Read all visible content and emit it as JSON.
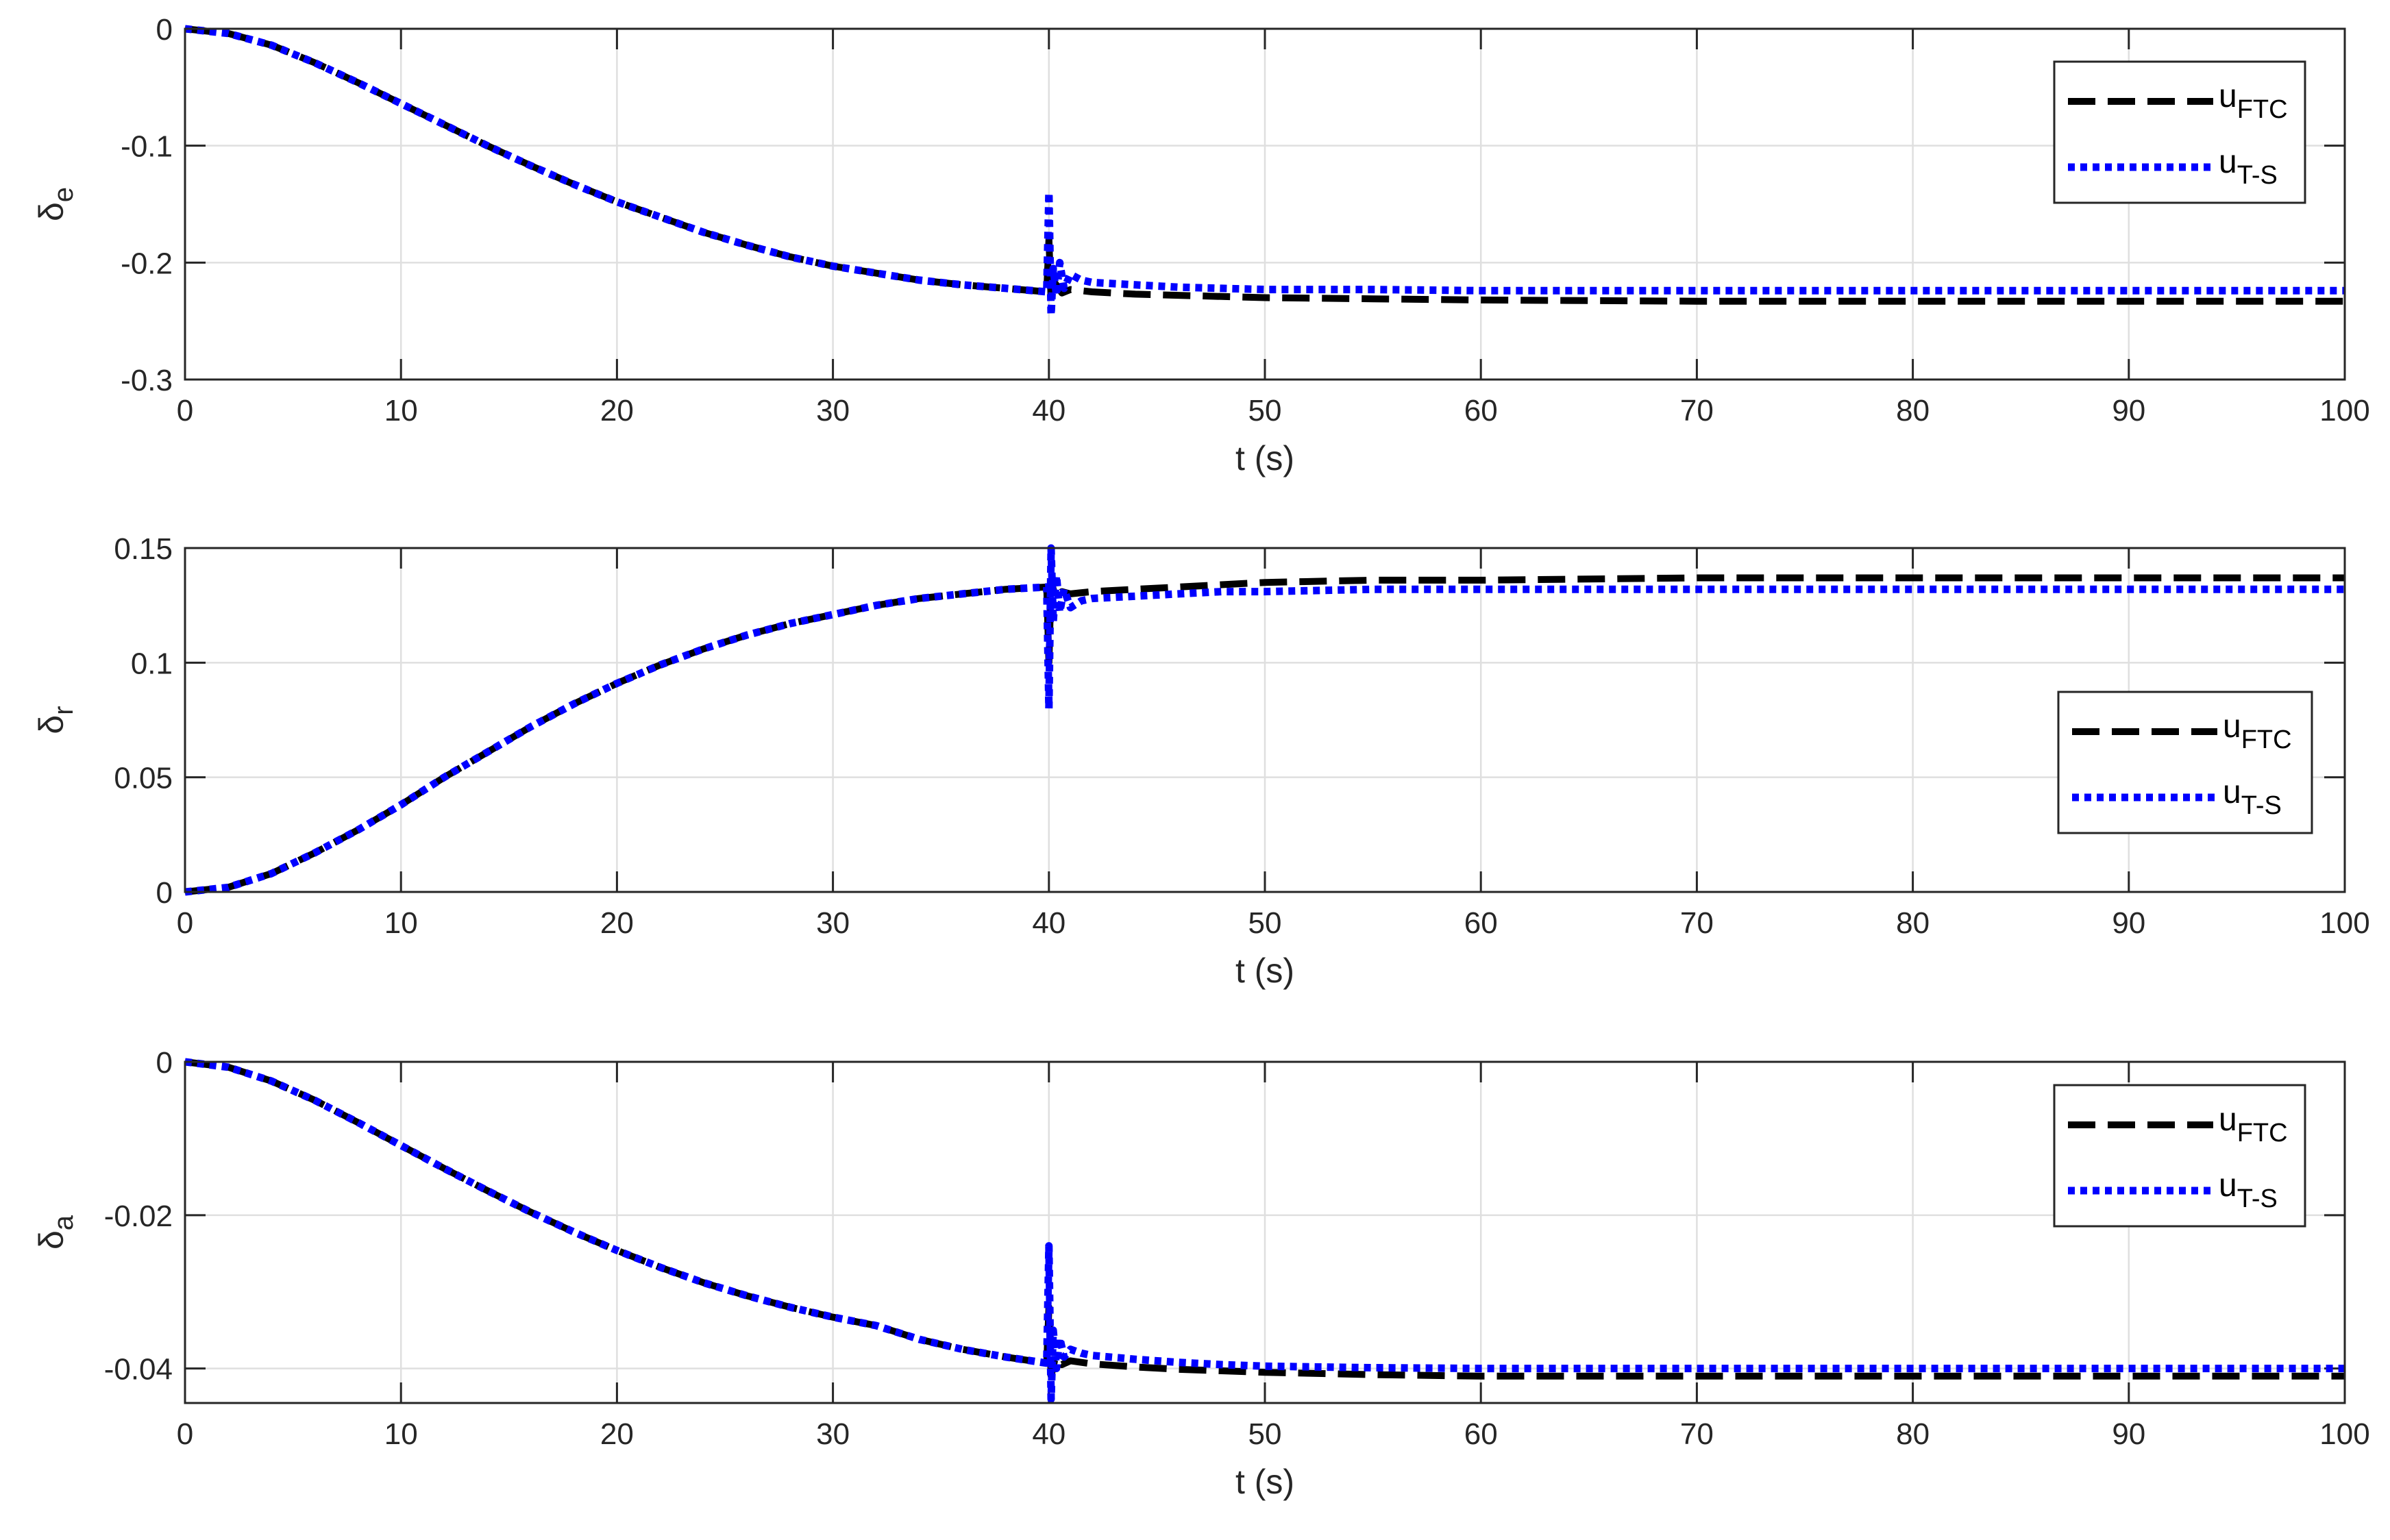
{
  "chart_data": [
    {
      "type": "line",
      "ylabel_symbol": "δ",
      "ylabel_subscript": "e",
      "xlabel": "t (s)",
      "xlim": [
        0,
        100
      ],
      "ylim": [
        -0.3,
        0
      ],
      "xticks": [
        0,
        10,
        20,
        30,
        40,
        50,
        60,
        70,
        80,
        90,
        100
      ],
      "yticks": [
        0,
        -0.1,
        -0.2,
        -0.3
      ],
      "ytick_labels": [
        "0",
        "-0.1",
        "-0.2",
        "-0.3"
      ],
      "grid": true,
      "legend_placement": "top-right",
      "series": [
        {
          "name": "u",
          "name_sub": "FTC",
          "color": "#000000",
          "style": "dash",
          "x": [
            0,
            2,
            4,
            6,
            8,
            10,
            12,
            14,
            16,
            18,
            20,
            22,
            24,
            26,
            28,
            30,
            32,
            34,
            36,
            38,
            39.9,
            40,
            40.1,
            40.3,
            40.6,
            41,
            42,
            44,
            46,
            48,
            50,
            55,
            60,
            70,
            80,
            90,
            100
          ],
          "y": [
            0,
            -0.004,
            -0.014,
            -0.029,
            -0.046,
            -0.064,
            -0.082,
            -0.1,
            -0.117,
            -0.133,
            -0.148,
            -0.161,
            -0.174,
            -0.185,
            -0.195,
            -0.203,
            -0.209,
            -0.215,
            -0.219,
            -0.222,
            -0.225,
            -0.18,
            -0.232,
            -0.218,
            -0.226,
            -0.223,
            -0.225,
            -0.227,
            -0.228,
            -0.229,
            -0.23,
            -0.231,
            -0.232,
            -0.233,
            -0.233,
            -0.233,
            -0.233
          ]
        },
        {
          "name": "u",
          "name_sub": "T-S",
          "color": "#0000FF",
          "style": "dot",
          "x": [
            0,
            2,
            4,
            6,
            8,
            10,
            12,
            14,
            16,
            18,
            20,
            22,
            24,
            26,
            28,
            30,
            32,
            34,
            36,
            38,
            39.9,
            40,
            40.1,
            40.2,
            40.35,
            40.5,
            40.7,
            41,
            41.5,
            42,
            44,
            46,
            48,
            50,
            55,
            60,
            70,
            80,
            90,
            100
          ],
          "y": [
            0,
            -0.004,
            -0.014,
            -0.029,
            -0.046,
            -0.064,
            -0.082,
            -0.1,
            -0.117,
            -0.133,
            -0.148,
            -0.161,
            -0.174,
            -0.185,
            -0.195,
            -0.203,
            -0.209,
            -0.215,
            -0.219,
            -0.222,
            -0.225,
            -0.14,
            -0.245,
            -0.205,
            -0.228,
            -0.2,
            -0.222,
            -0.21,
            -0.215,
            -0.217,
            -0.219,
            -0.221,
            -0.222,
            -0.223,
            -0.223,
            -0.224,
            -0.224,
            -0.224,
            -0.224,
            -0.224
          ]
        }
      ]
    },
    {
      "type": "line",
      "ylabel_symbol": "δ",
      "ylabel_subscript": "r",
      "xlabel": "t (s)",
      "xlim": [
        0,
        100
      ],
      "ylim": [
        0,
        0.15
      ],
      "xticks": [
        0,
        10,
        20,
        30,
        40,
        50,
        60,
        70,
        80,
        90,
        100
      ],
      "yticks": [
        0,
        0.05,
        0.1,
        0.15
      ],
      "ytick_labels": [
        "0",
        "0.05",
        "0.1",
        "0.15"
      ],
      "grid": true,
      "legend_placement": "right",
      "series": [
        {
          "name": "u",
          "name_sub": "FTC",
          "color": "#000000",
          "style": "dash",
          "x": [
            0,
            2,
            4,
            6,
            8,
            10,
            12,
            14,
            16,
            18,
            20,
            22,
            24,
            26,
            28,
            30,
            32,
            34,
            36,
            38,
            39.9,
            40,
            40.1,
            40.3,
            40.6,
            41,
            42,
            44,
            46,
            48,
            50,
            55,
            60,
            70,
            80,
            90,
            100
          ],
          "y": [
            0,
            0.002,
            0.008,
            0.017,
            0.027,
            0.038,
            0.05,
            0.061,
            0.072,
            0.082,
            0.091,
            0.099,
            0.106,
            0.112,
            0.117,
            0.121,
            0.125,
            0.128,
            0.13,
            0.132,
            0.133,
            0.1,
            0.136,
            0.128,
            0.131,
            0.13,
            0.131,
            0.132,
            0.133,
            0.134,
            0.135,
            0.136,
            0.136,
            0.137,
            0.137,
            0.137,
            0.137
          ]
        },
        {
          "name": "u",
          "name_sub": "T-S",
          "color": "#0000FF",
          "style": "dot",
          "x": [
            0,
            2,
            4,
            6,
            8,
            10,
            12,
            14,
            16,
            18,
            20,
            22,
            24,
            26,
            28,
            30,
            32,
            34,
            36,
            38,
            39.9,
            40,
            40.1,
            40.2,
            40.35,
            40.5,
            40.7,
            41,
            41.5,
            42,
            44,
            46,
            48,
            50,
            55,
            60,
            70,
            80,
            90,
            100
          ],
          "y": [
            0,
            0.002,
            0.008,
            0.017,
            0.027,
            0.038,
            0.05,
            0.061,
            0.072,
            0.082,
            0.091,
            0.099,
            0.106,
            0.112,
            0.117,
            0.121,
            0.125,
            0.128,
            0.13,
            0.132,
            0.133,
            0.08,
            0.15,
            0.118,
            0.138,
            0.122,
            0.132,
            0.124,
            0.127,
            0.128,
            0.129,
            0.13,
            0.131,
            0.131,
            0.132,
            0.132,
            0.132,
            0.132,
            0.132,
            0.132
          ]
        }
      ]
    },
    {
      "type": "line",
      "ylabel_symbol": "δ",
      "ylabel_subscript": "a",
      "xlabel": "t (s)",
      "xlim": [
        0,
        100
      ],
      "ylim": [
        -0.0445,
        0
      ],
      "xticks": [
        0,
        10,
        20,
        30,
        40,
        50,
        60,
        70,
        80,
        90,
        100
      ],
      "yticks": [
        0,
        -0.02,
        -0.04
      ],
      "ytick_labels": [
        "0",
        "-0.02",
        "-0.04"
      ],
      "grid": true,
      "legend_placement": "top-right",
      "series": [
        {
          "name": "u",
          "name_sub": "FTC",
          "color": "#000000",
          "style": "dash",
          "x": [
            0,
            2,
            4,
            6,
            8,
            10,
            12,
            14,
            16,
            18,
            20,
            22,
            24,
            26,
            28,
            30,
            32,
            34,
            36,
            38,
            39.9,
            40,
            40.1,
            40.3,
            40.6,
            41,
            42,
            44,
            46,
            48,
            50,
            55,
            60,
            70,
            80,
            90,
            100
          ],
          "y": [
            0,
            -0.0007,
            -0.0025,
            -0.005,
            -0.0079,
            -0.0109,
            -0.0139,
            -0.0168,
            -0.0196,
            -0.0222,
            -0.0246,
            -0.0268,
            -0.0288,
            -0.0305,
            -0.032,
            -0.0333,
            -0.0344,
            -0.0362,
            -0.0375,
            -0.0385,
            -0.0393,
            -0.032,
            -0.041,
            -0.0385,
            -0.0395,
            -0.039,
            -0.0394,
            -0.0398,
            -0.0401,
            -0.0403,
            -0.0405,
            -0.0408,
            -0.041,
            -0.041,
            -0.041,
            -0.041,
            -0.041
          ]
        },
        {
          "name": "u",
          "name_sub": "T-S",
          "color": "#0000FF",
          "style": "dot",
          "x": [
            0,
            2,
            4,
            6,
            8,
            10,
            12,
            14,
            16,
            18,
            20,
            22,
            24,
            26,
            28,
            30,
            32,
            34,
            36,
            38,
            39.9,
            40,
            40.1,
            40.2,
            40.35,
            40.5,
            40.7,
            41,
            41.5,
            42,
            44,
            46,
            48,
            50,
            55,
            60,
            70,
            80,
            90,
            100
          ],
          "y": [
            0,
            -0.0007,
            -0.0025,
            -0.005,
            -0.0079,
            -0.0109,
            -0.0139,
            -0.0168,
            -0.0196,
            -0.0222,
            -0.0246,
            -0.0268,
            -0.0288,
            -0.0305,
            -0.032,
            -0.0333,
            -0.0344,
            -0.0362,
            -0.0375,
            -0.0385,
            -0.0393,
            -0.024,
            -0.044,
            -0.035,
            -0.04,
            -0.036,
            -0.0385,
            -0.0375,
            -0.038,
            -0.0383,
            -0.0388,
            -0.0392,
            -0.0395,
            -0.0397,
            -0.0399,
            -0.04,
            -0.04,
            -0.04,
            -0.04,
            -0.04
          ]
        }
      ]
    }
  ]
}
